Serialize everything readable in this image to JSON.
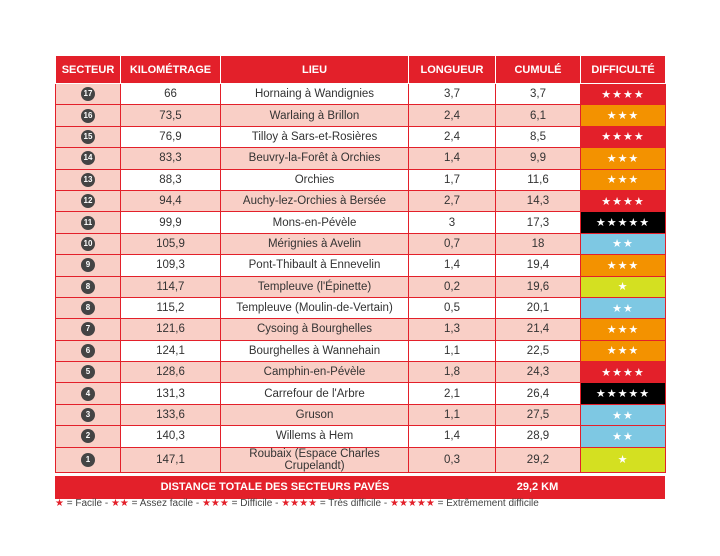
{
  "table": {
    "headers": [
      "SECTEUR",
      "KILOMÉTRAGE",
      "LIEU",
      "LONGUEUR",
      "CUMULÉ",
      "DIFFICULTÉ"
    ],
    "rows": [
      [
        "17",
        "66",
        "Hornaing à Wandignies",
        "3,7",
        "3,7",
        {
          "text": "★★★★",
          "color": "#e3202a"
        }
      ],
      [
        "16",
        "73,5",
        "Warlaing à Brillon",
        "2,4",
        "6,1",
        {
          "text": "★★★",
          "color": "#f39200"
        }
      ],
      [
        "15",
        "76,9",
        "Tilloy à Sars-et-Rosières",
        "2,4",
        "8,5",
        {
          "text": "★★★★",
          "color": "#e3202a"
        }
      ],
      [
        "14",
        "83,3",
        "Beuvry-la-Forêt à Orchies",
        "1,4",
        "9,9",
        {
          "text": "★★★",
          "color": "#f39200"
        }
      ],
      [
        "13",
        "88,3",
        "Orchies",
        "1,7",
        "11,6",
        {
          "text": "★★★",
          "color": "#f39200"
        }
      ],
      [
        "12",
        "94,4",
        "Auchy-lez-Orchies à Bersée",
        "2,7",
        "14,3",
        {
          "text": "★★★★",
          "color": "#e3202a"
        }
      ],
      [
        "11",
        "99,9",
        "Mons-en-Pévèle",
        "3",
        "17,3",
        {
          "text": "★★★★★",
          "color": "#000000"
        }
      ],
      [
        "10",
        "105,9",
        "Mérignies à Avelin",
        "0,7",
        "18",
        {
          "text": "★★",
          "color": "#7ec8e3"
        }
      ],
      [
        "9",
        "109,3",
        "Pont-Thibault à Ennevelin",
        "1,4",
        "19,4",
        {
          "text": "★★★",
          "color": "#f39200"
        }
      ],
      [
        "8",
        "114,7",
        "Templeuve (l'Épinette)",
        "0,2",
        "19,6",
        {
          "text": "★",
          "color": "#d4e021"
        }
      ],
      [
        "8",
        "115,2",
        "Templeuve (Moulin-de-Vertain)",
        "0,5",
        "20,1",
        {
          "text": "★★",
          "color": "#7ec8e3"
        }
      ],
      [
        "7",
        "121,6",
        "Cysoing à Bourghelles",
        "1,3",
        "21,4",
        {
          "text": "★★★",
          "color": "#f39200"
        }
      ],
      [
        "6",
        "124,1",
        "Bourghelles à Wannehain",
        "1,1",
        "22,5",
        {
          "text": "★★★",
          "color": "#f39200"
        }
      ],
      [
        "5",
        "128,6",
        "Camphin-en-Pévèle",
        "1,8",
        "24,3",
        {
          "text": "★★★★",
          "color": "#e3202a"
        }
      ],
      [
        "4",
        "131,3",
        "Carrefour de l'Arbre",
        "2,1",
        "26,4",
        {
          "text": "★★★★★",
          "color": "#000000"
        }
      ],
      [
        "3",
        "133,6",
        "Gruson",
        "1,1",
        "27,5",
        {
          "text": "★★",
          "color": "#7ec8e3"
        }
      ],
      [
        "2",
        "140,3",
        "Willems à Hem",
        "1,4",
        "28,9",
        {
          "text": "★★",
          "color": "#7ec8e3"
        }
      ],
      [
        "1",
        "147,1",
        "Roubaix (Espace Charles Crupelandt)",
        "0,3",
        "29,2",
        {
          "text": "★",
          "color": "#d4e021"
        }
      ]
    ],
    "total_label": "DISTANCE TOTALE DES SECTEURS PAVÉS",
    "total_value": "29,2 KM"
  },
  "legend": [
    {
      "stars": "★",
      "label": "= Facile -"
    },
    {
      "stars": "★★",
      "label": "= Assez facile -"
    },
    {
      "stars": "★★★",
      "label": "= Difficile -"
    },
    {
      "stars": "★★★★",
      "label": "= Très difficile -"
    },
    {
      "stars": "★★★★★",
      "label": "= Extrêmement difficile"
    }
  ]
}
